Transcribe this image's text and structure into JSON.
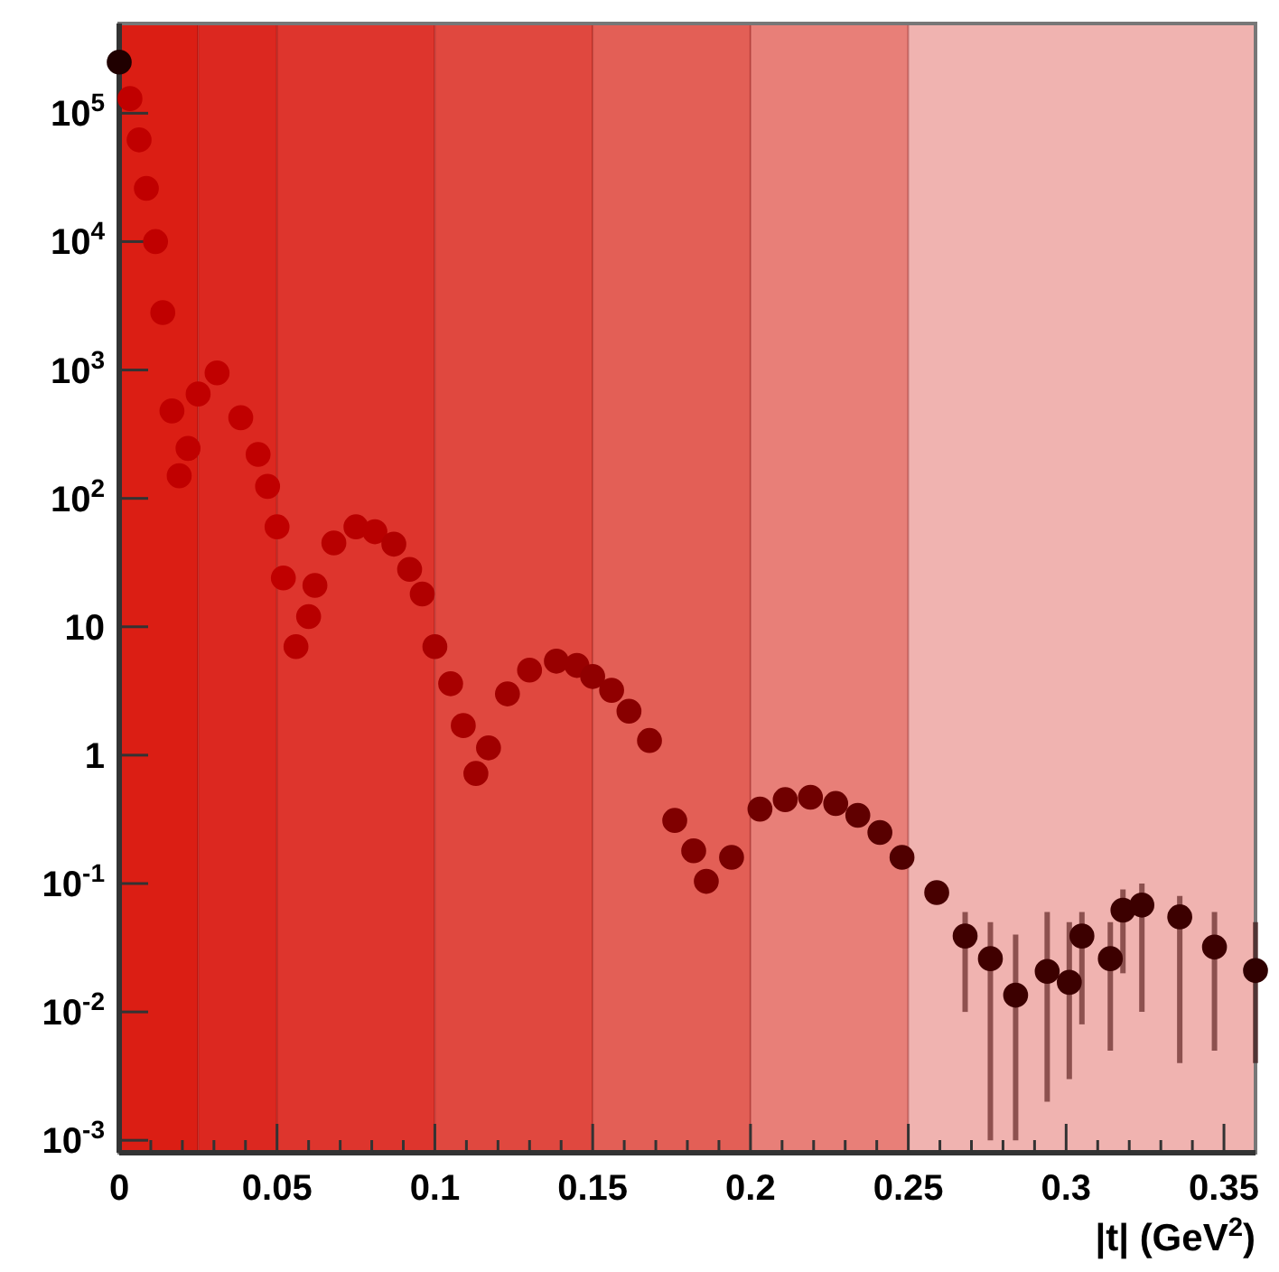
{
  "chart_data": {
    "type": "scatter",
    "xlabel": "|t| (GeV$^{2}$)",
    "marker": "circle",
    "log": "y",
    "grid": false,
    "xlim": [
      0,
      0.36
    ],
    "ylim": [
      0.0008,
      500000
    ],
    "xticks": [
      0,
      {
        "value": 0.01,
        "label": null
      },
      {
        "value": 0.02,
        "label": null
      },
      {
        "value": 0.03,
        "label": null
      },
      {
        "value": 0.04,
        "label": null
      },
      0.05,
      {
        "value": 0.06,
        "label": null
      },
      {
        "value": 0.07,
        "label": null
      },
      {
        "value": 0.08,
        "label": null
      },
      {
        "value": 0.09,
        "label": null
      },
      0.1,
      {
        "value": 0.11,
        "label": null
      },
      {
        "value": 0.12,
        "label": null
      },
      {
        "value": 0.13,
        "label": null
      },
      {
        "value": 0.14,
        "label": null
      },
      0.15,
      {
        "value": 0.16,
        "label": null
      },
      {
        "value": 0.17,
        "label": null
      },
      {
        "value": 0.18,
        "label": null
      },
      {
        "value": 0.19,
        "label": null
      },
      0.2,
      {
        "value": 0.21,
        "label": null
      },
      {
        "value": 0.22,
        "label": null
      },
      {
        "value": 0.23,
        "label": null
      },
      {
        "value": 0.24,
        "label": null
      },
      0.25,
      {
        "value": 0.26,
        "label": null
      },
      {
        "value": 0.27,
        "label": null
      },
      {
        "value": 0.28,
        "label": null
      },
      {
        "value": 0.29,
        "label": null
      },
      0.3,
      {
        "value": 0.31,
        "label": null
      },
      {
        "value": 0.32,
        "label": null
      },
      {
        "value": 0.33,
        "label": null
      },
      {
        "value": 0.34,
        "label": null
      },
      0.35
    ],
    "yticks": [
      {
        "value": 0.001,
        "label": "10$^{-3}$"
      },
      {
        "value": 0.01,
        "label": "10$^{-2}$"
      },
      {
        "value": 0.1,
        "label": "10$^{-1}$"
      },
      1,
      10,
      {
        "value": 100,
        "label": "10$^{2}$"
      },
      {
        "value": 1000,
        "label": "10$^{3}$"
      },
      {
        "value": 10000,
        "label": "10$^{4}$"
      },
      {
        "value": 100000,
        "label": "10$^{5}$"
      }
    ],
    "bands": [
      {
        "axis": "x",
        "from": 0,
        "to": 0.025,
        "color": "#db1e14"
      },
      {
        "axis": "x",
        "from": 0.025,
        "to": 0.05,
        "color": "#dc2820"
      },
      {
        "axis": "x",
        "from": 0.05,
        "to": 0.1,
        "color": "#de352d"
      },
      {
        "axis": "x",
        "from": 0.1,
        "to": 0.15,
        "color": "#e0483f"
      },
      {
        "axis": "x",
        "from": 0.15,
        "to": 0.2,
        "color": "#e35f56"
      },
      {
        "axis": "x",
        "from": 0.2,
        "to": 0.25,
        "color": "#e87f78"
      },
      {
        "axis": "x",
        "from": 0.25,
        "to": 0.36,
        "color": "#f0b3b0"
      }
    ],
    "series": [
      {
        "x": [
          0,
          0.0034,
          0.0063,
          0.0086,
          0.0115,
          0.0138,
          0.0167,
          0.019,
          0.0218,
          0.025,
          0.031,
          0.0385,
          0.044,
          0.047,
          0.05,
          0.052,
          0.056,
          0.06,
          0.062,
          0.068,
          0.075,
          0.081,
          0.087,
          0.092,
          0.096,
          0.1,
          0.105,
          0.109,
          0.113,
          0.117,
          0.123,
          0.13,
          0.1385,
          0.145,
          0.15,
          0.156,
          0.1615,
          0.168,
          0.176,
          0.182,
          0.186,
          0.194,
          0.203,
          0.211,
          0.219,
          0.227,
          0.234,
          0.241,
          0.248,
          0.259,
          0.268,
          0.276,
          0.284,
          0.294,
          0.301,
          0.305,
          0.314,
          0.318,
          0.324,
          0.336,
          0.347,
          0.36
        ],
        "values": [
          250000,
          130000,
          62000,
          26000,
          10000,
          2800,
          480,
          150,
          245,
          650,
          950,
          425,
          220,
          124,
          60,
          24,
          7,
          12,
          21,
          45,
          60,
          55,
          44,
          28,
          18,
          7,
          3.6,
          1.7,
          0.72,
          1.14,
          3,
          4.6,
          5.4,
          5,
          4.1,
          3.2,
          2.2,
          1.3,
          0.31,
          0.18,
          0.104,
          0.16,
          0.38,
          0.45,
          0.47,
          0.42,
          0.34,
          0.25,
          0.16,
          0.085,
          0.039,
          0.026,
          0.0135,
          0.0207,
          0.017,
          0.039,
          0.026,
          0.062,
          0.068,
          0.055,
          0.032,
          0.021
        ],
        "errors": [
          null,
          null,
          null,
          null,
          null,
          null,
          null,
          null,
          null,
          null,
          null,
          null,
          null,
          null,
          null,
          null,
          null,
          null,
          null,
          null,
          null,
          null,
          null,
          null,
          null,
          null,
          null,
          null,
          null,
          null,
          null,
          null,
          null,
          null,
          null,
          null,
          null,
          null,
          null,
          null,
          null,
          null,
          null,
          null,
          null,
          null,
          null,
          null,
          null,
          null,
          [
            0.01,
            0.06
          ],
          [
            0.001,
            0.05
          ],
          [
            0.001,
            0.04
          ],
          [
            0.002,
            0.06
          ],
          [
            0.003,
            0.05
          ],
          [
            0.008,
            0.06
          ],
          [
            0.005,
            0.05
          ],
          [
            0.02,
            0.09
          ],
          [
            0.01,
            0.1
          ],
          [
            0.004,
            0.08
          ],
          [
            0.005,
            0.06
          ],
          [
            0.004,
            0.05
          ]
        ],
        "colors": [
          "#200000",
          "#c00000",
          "#c00000",
          "#c00000",
          "#c00000",
          "#c00000",
          "#c00000",
          "#c00000",
          "#c00000",
          "#c00000",
          "#c00000",
          "#c00000",
          "#c00000",
          "#c00000",
          "#c00000",
          "#c00000",
          "#b80000",
          "#b80000",
          "#b80000",
          "#b80000",
          "#b80000",
          "#b80000",
          "#b00000",
          "#b00000",
          "#b00000",
          "#a80000",
          "#a80000",
          "#a80000",
          "#a00000",
          "#a00000",
          "#a00000",
          "#a00000",
          "#980000",
          "#980000",
          "#900000",
          "#900000",
          "#880000",
          "#880000",
          "#800000",
          "#800000",
          "#800000",
          "#780000",
          "#700000",
          "#700000",
          "#700000",
          "#680000",
          "#600000",
          "#580000",
          "#500000",
          "#480000",
          "#400000",
          "#400000",
          "#3c0000",
          "#3c0000",
          "#3c0000",
          "#3c0000",
          "#3c0000",
          "#3c0000",
          "#3c0000",
          "#3c0000",
          "#3c0000",
          "#300000"
        ]
      }
    ]
  }
}
